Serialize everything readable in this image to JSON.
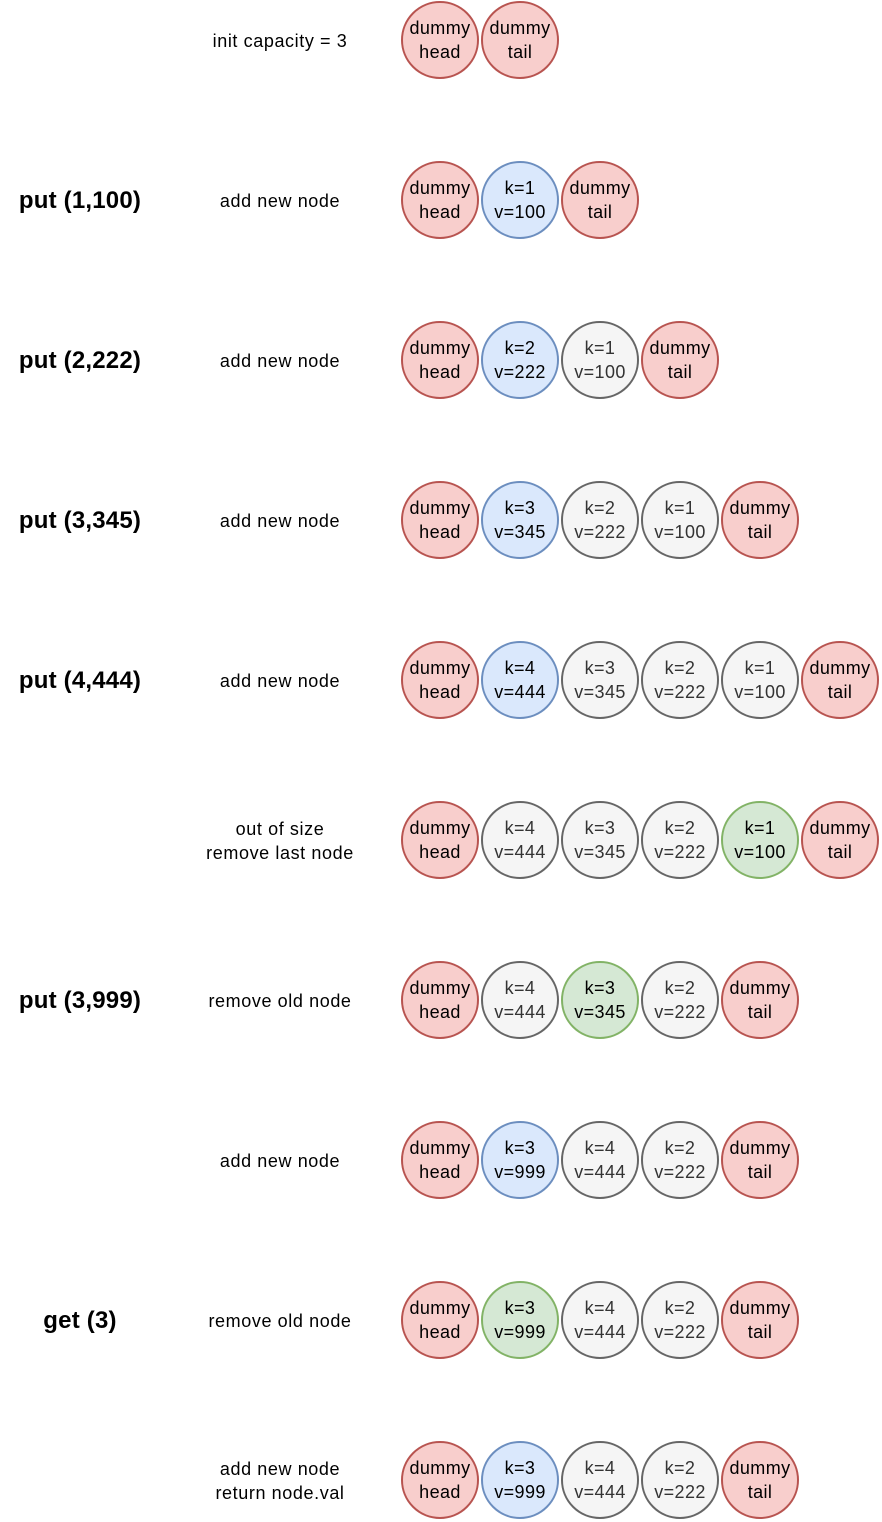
{
  "colors": {
    "dummy": {
      "fill": "#f8cecc",
      "stroke": "#b85450"
    },
    "normal": {
      "fill": "#f5f5f5",
      "stroke": "#666666"
    },
    "new": {
      "fill": "#dae8fc",
      "stroke": "#6c8ebf"
    },
    "removed": {
      "fill": "#d5e8d4",
      "stroke": "#82b366"
    }
  },
  "steps": [
    {
      "op": "",
      "desc": [
        "init capacity = 3"
      ],
      "nodes": [
        {
          "kind": "dummy",
          "lines": [
            "dummy",
            "head"
          ]
        },
        {
          "kind": "dummy",
          "lines": [
            "dummy",
            "tail"
          ]
        }
      ]
    },
    {
      "op": "put (1,100)",
      "desc": [
        "add new node"
      ],
      "nodes": [
        {
          "kind": "dummy",
          "lines": [
            "dummy",
            "head"
          ]
        },
        {
          "kind": "new",
          "lines": [
            "k=1",
            "v=100"
          ]
        },
        {
          "kind": "dummy",
          "lines": [
            "dummy",
            "tail"
          ]
        }
      ]
    },
    {
      "op": "put (2,222)",
      "desc": [
        "add new node"
      ],
      "nodes": [
        {
          "kind": "dummy",
          "lines": [
            "dummy",
            "head"
          ]
        },
        {
          "kind": "new",
          "lines": [
            "k=2",
            "v=222"
          ]
        },
        {
          "kind": "normal",
          "lines": [
            "k=1",
            "v=100"
          ]
        },
        {
          "kind": "dummy",
          "lines": [
            "dummy",
            "tail"
          ]
        }
      ]
    },
    {
      "op": "put (3,345)",
      "desc": [
        "add new node"
      ],
      "nodes": [
        {
          "kind": "dummy",
          "lines": [
            "dummy",
            "head"
          ]
        },
        {
          "kind": "new",
          "lines": [
            "k=3",
            "v=345"
          ]
        },
        {
          "kind": "normal",
          "lines": [
            "k=2",
            "v=222"
          ]
        },
        {
          "kind": "normal",
          "lines": [
            "k=1",
            "v=100"
          ]
        },
        {
          "kind": "dummy",
          "lines": [
            "dummy",
            "tail"
          ]
        }
      ]
    },
    {
      "op": "put (4,444)",
      "desc": [
        "add new node"
      ],
      "nodes": [
        {
          "kind": "dummy",
          "lines": [
            "dummy",
            "head"
          ]
        },
        {
          "kind": "new",
          "lines": [
            "k=4",
            "v=444"
          ]
        },
        {
          "kind": "normal",
          "lines": [
            "k=3",
            "v=345"
          ]
        },
        {
          "kind": "normal",
          "lines": [
            "k=2",
            "v=222"
          ]
        },
        {
          "kind": "normal",
          "lines": [
            "k=1",
            "v=100"
          ]
        },
        {
          "kind": "dummy",
          "lines": [
            "dummy",
            "tail"
          ]
        }
      ]
    },
    {
      "op": "",
      "desc": [
        "out of size",
        "remove last node"
      ],
      "nodes": [
        {
          "kind": "dummy",
          "lines": [
            "dummy",
            "head"
          ]
        },
        {
          "kind": "normal",
          "lines": [
            "k=4",
            "v=444"
          ]
        },
        {
          "kind": "normal",
          "lines": [
            "k=3",
            "v=345"
          ]
        },
        {
          "kind": "normal",
          "lines": [
            "k=2",
            "v=222"
          ]
        },
        {
          "kind": "removed",
          "lines": [
            "k=1",
            "v=100"
          ]
        },
        {
          "kind": "dummy",
          "lines": [
            "dummy",
            "tail"
          ]
        }
      ]
    },
    {
      "op": "put (3,999)",
      "desc": [
        "remove old node"
      ],
      "nodes": [
        {
          "kind": "dummy",
          "lines": [
            "dummy",
            "head"
          ]
        },
        {
          "kind": "normal",
          "lines": [
            "k=4",
            "v=444"
          ]
        },
        {
          "kind": "removed",
          "lines": [
            "k=3",
            "v=345"
          ]
        },
        {
          "kind": "normal",
          "lines": [
            "k=2",
            "v=222"
          ]
        },
        {
          "kind": "dummy",
          "lines": [
            "dummy",
            "tail"
          ]
        }
      ]
    },
    {
      "op": "",
      "desc": [
        "add new node"
      ],
      "nodes": [
        {
          "kind": "dummy",
          "lines": [
            "dummy",
            "head"
          ]
        },
        {
          "kind": "new",
          "lines": [
            "k=3",
            "v=999"
          ]
        },
        {
          "kind": "normal",
          "lines": [
            "k=4",
            "v=444"
          ]
        },
        {
          "kind": "normal",
          "lines": [
            "k=2",
            "v=222"
          ]
        },
        {
          "kind": "dummy",
          "lines": [
            "dummy",
            "tail"
          ]
        }
      ]
    },
    {
      "op": "get (3)",
      "desc": [
        "remove old node"
      ],
      "nodes": [
        {
          "kind": "dummy",
          "lines": [
            "dummy",
            "head"
          ]
        },
        {
          "kind": "removed",
          "lines": [
            "k=3",
            "v=999"
          ]
        },
        {
          "kind": "normal",
          "lines": [
            "k=4",
            "v=444"
          ]
        },
        {
          "kind": "normal",
          "lines": [
            "k=2",
            "v=222"
          ]
        },
        {
          "kind": "dummy",
          "lines": [
            "dummy",
            "tail"
          ]
        }
      ]
    },
    {
      "op": "",
      "desc": [
        "add new node",
        "return node.val"
      ],
      "nodes": [
        {
          "kind": "dummy",
          "lines": [
            "dummy",
            "head"
          ]
        },
        {
          "kind": "new",
          "lines": [
            "k=3",
            "v=999"
          ]
        },
        {
          "kind": "normal",
          "lines": [
            "k=4",
            "v=444"
          ]
        },
        {
          "kind": "normal",
          "lines": [
            "k=2",
            "v=222"
          ]
        },
        {
          "kind": "dummy",
          "lines": [
            "dummy",
            "tail"
          ]
        }
      ]
    }
  ]
}
